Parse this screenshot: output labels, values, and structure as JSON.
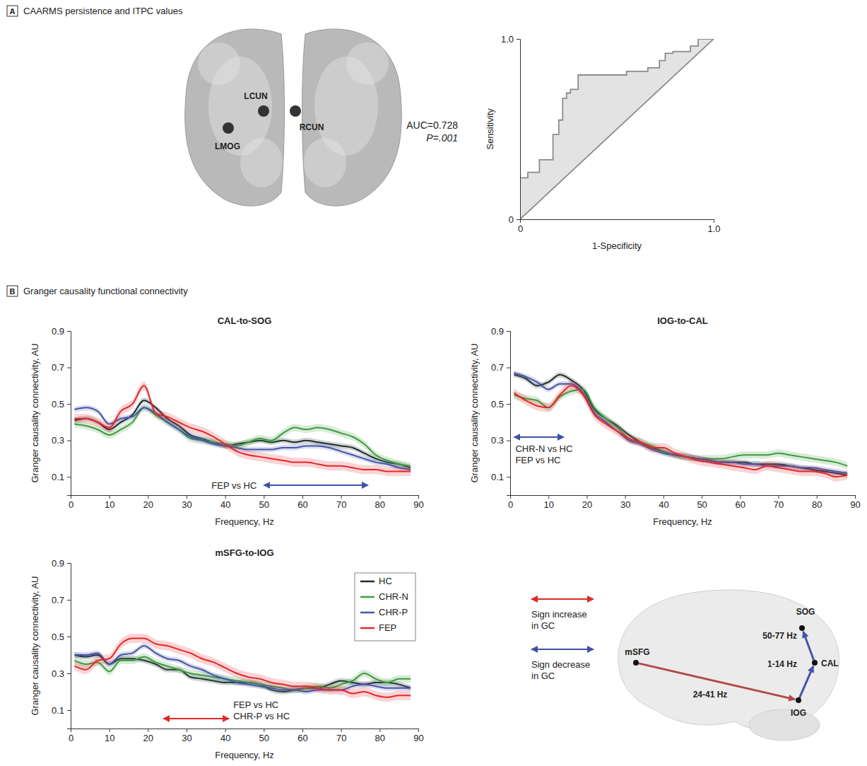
{
  "panels": [
    {
      "letter": "A",
      "title": "CAARMS persistence and ITPC values"
    },
    {
      "letter": "B",
      "title": "Granger causality functional connectivity"
    }
  ],
  "brain_regions": [
    "LCUN",
    "LMOG",
    "RCUN"
  ],
  "connectivity_diagram": {
    "nodes": [
      "mSFG",
      "SOG",
      "CAL",
      "IOG"
    ],
    "edges": [
      {
        "from": "CAL",
        "to": "SOG",
        "label": "50-77 Hz",
        "color": "#4654a8"
      },
      {
        "from": "IOG",
        "to": "CAL",
        "label": "1-14 Hz",
        "color": "#4654a8"
      },
      {
        "from": "mSFG",
        "to": "IOG",
        "label": "24-41 Hz",
        "color": "#b5474a"
      }
    ],
    "legend": [
      {
        "label": "Sign increase in GC",
        "color": "#e02828"
      },
      {
        "label": "Sign decrease in GC",
        "color": "#3f51a3"
      }
    ]
  },
  "chart_data": [
    {
      "type": "line",
      "x_label": "1-Specificity",
      "y_label": "Sensitivity",
      "xlim": [
        0,
        1
      ],
      "ylim": [
        0,
        1
      ],
      "xticks": [
        0,
        {
          "value": 1,
          "label": "1.0"
        }
      ],
      "yticks": [
        0,
        {
          "value": 1,
          "label": "1.0"
        }
      ],
      "annotations": [
        "AUC=0.728",
        "P=.001"
      ],
      "series": [
        {
          "color": "#8c8c8c",
          "x": [
            0,
            0,
            0.04,
            0.04,
            0.1,
            0.1,
            0.17,
            0.17,
            0.2,
            0.2,
            0.22,
            0.22,
            0.24,
            0.24,
            0.26,
            0.26,
            0.3,
            0.3,
            0.55,
            0.55,
            0.66,
            0.66,
            0.72,
            0.72,
            0.75,
            0.75,
            0.79,
            0.79,
            0.88,
            0.88,
            0.92,
            0.92,
            1
          ],
          "values": [
            0,
            0.23,
            0.23,
            0.26,
            0.26,
            0.33,
            0.33,
            0.47,
            0.47,
            0.55,
            0.55,
            0.67,
            0.67,
            0.7,
            0.7,
            0.72,
            0.72,
            0.8,
            0.8,
            0.82,
            0.82,
            0.84,
            0.84,
            0.88,
            0.88,
            0.92,
            0.92,
            0.93,
            0.93,
            0.96,
            0.96,
            1,
            1
          ]
        },
        {
          "color": "#8c8c8c",
          "x": [
            0,
            1
          ],
          "values": [
            0,
            1
          ]
        }
      ]
    },
    {
      "type": "line",
      "title": "CAL-to-SOG",
      "x_label": "Frequency, Hz",
      "y_label": "Granger causality connectivity, AU",
      "xlim": [
        0,
        90
      ],
      "ylim": [
        0,
        0.9
      ],
      "xticks": [
        0,
        10,
        20,
        30,
        40,
        50,
        60,
        70,
        80,
        90
      ],
      "yticks": [
        0.1,
        0.3,
        0.5,
        0.7,
        0.9
      ],
      "x": [
        1,
        4,
        7,
        10,
        13,
        16,
        19,
        22,
        25,
        28,
        31,
        34,
        37,
        40,
        43,
        46,
        49,
        52,
        55,
        58,
        61,
        64,
        67,
        70,
        73,
        76,
        79,
        82,
        85,
        88
      ],
      "annotations": [
        {
          "label": [
            "FEP vs HC"
          ],
          "range": [
            50,
            77
          ],
          "color": "#3f51a3"
        }
      ],
      "series": [
        {
          "color": "#1f2d2d",
          "error": 0.015,
          "values": [
            0.41,
            0.42,
            0.4,
            0.36,
            0.4,
            0.44,
            0.52,
            0.48,
            0.42,
            0.38,
            0.33,
            0.31,
            0.29,
            0.27,
            0.28,
            0.29,
            0.3,
            0.29,
            0.3,
            0.29,
            0.3,
            0.29,
            0.28,
            0.27,
            0.26,
            0.23,
            0.2,
            0.18,
            0.17,
            0.15
          ]
        },
        {
          "color": "#3d9b3d",
          "error": 0.02,
          "values": [
            0.39,
            0.38,
            0.36,
            0.33,
            0.36,
            0.4,
            0.48,
            0.44,
            0.4,
            0.36,
            0.31,
            0.3,
            0.29,
            0.28,
            0.27,
            0.29,
            0.31,
            0.3,
            0.34,
            0.37,
            0.36,
            0.37,
            0.36,
            0.34,
            0.32,
            0.28,
            0.22,
            0.19,
            0.17,
            0.16
          ]
        },
        {
          "color": "#4654a8",
          "error": 0.015,
          "values": [
            0.47,
            0.48,
            0.46,
            0.39,
            0.42,
            0.43,
            0.48,
            0.45,
            0.4,
            0.36,
            0.32,
            0.3,
            0.28,
            0.27,
            0.26,
            0.25,
            0.25,
            0.25,
            0.26,
            0.26,
            0.27,
            0.27,
            0.26,
            0.24,
            0.22,
            0.2,
            0.18,
            0.17,
            0.15,
            0.14
          ]
        },
        {
          "color": "#e8262b",
          "error": 0.025,
          "values": [
            0.42,
            0.42,
            0.4,
            0.37,
            0.46,
            0.5,
            0.6,
            0.45,
            0.43,
            0.4,
            0.37,
            0.35,
            0.32,
            0.28,
            0.24,
            0.22,
            0.21,
            0.2,
            0.19,
            0.18,
            0.18,
            0.17,
            0.16,
            0.16,
            0.15,
            0.14,
            0.14,
            0.13,
            0.13,
            0.13
          ]
        }
      ]
    },
    {
      "type": "line",
      "title": "IOG-to-CAL",
      "x_label": "Frequency, Hz",
      "y_label": "Granger causality connectivity, AU",
      "xlim": [
        0,
        90
      ],
      "ylim": [
        0,
        0.9
      ],
      "xticks": [
        0,
        10,
        20,
        30,
        40,
        50,
        60,
        70,
        80,
        90
      ],
      "yticks": [
        0.1,
        0.3,
        0.5,
        0.7,
        0.9
      ],
      "x": [
        1,
        4,
        7,
        10,
        13,
        16,
        19,
        22,
        25,
        28,
        31,
        34,
        37,
        40,
        43,
        46,
        49,
        52,
        55,
        58,
        61,
        64,
        67,
        70,
        73,
        76,
        79,
        82,
        85,
        88
      ],
      "annotations": [
        {
          "label": [
            "CHR-N vs HC",
            "FEP vs HC"
          ],
          "range": [
            1,
            14
          ],
          "color": "#3f51a3"
        }
      ],
      "series": [
        {
          "color": "#1f2d2d",
          "error": 0.015,
          "values": [
            0.66,
            0.64,
            0.6,
            0.62,
            0.66,
            0.63,
            0.58,
            0.47,
            0.42,
            0.38,
            0.33,
            0.29,
            0.26,
            0.24,
            0.22,
            0.21,
            0.2,
            0.19,
            0.18,
            0.18,
            0.18,
            0.17,
            0.17,
            0.17,
            0.16,
            0.15,
            0.14,
            0.13,
            0.12,
            0.11
          ]
        },
        {
          "color": "#3d9b3d",
          "error": 0.02,
          "values": [
            0.55,
            0.53,
            0.52,
            0.48,
            0.54,
            0.57,
            0.58,
            0.48,
            0.42,
            0.37,
            0.31,
            0.29,
            0.27,
            0.24,
            0.22,
            0.21,
            0.2,
            0.2,
            0.2,
            0.21,
            0.22,
            0.22,
            0.22,
            0.23,
            0.22,
            0.21,
            0.2,
            0.19,
            0.18,
            0.16
          ]
        },
        {
          "color": "#4654a8",
          "error": 0.015,
          "values": [
            0.67,
            0.65,
            0.62,
            0.58,
            0.61,
            0.61,
            0.56,
            0.45,
            0.4,
            0.35,
            0.3,
            0.28,
            0.25,
            0.23,
            0.22,
            0.21,
            0.2,
            0.19,
            0.18,
            0.18,
            0.17,
            0.17,
            0.16,
            0.16,
            0.16,
            0.15,
            0.15,
            0.14,
            0.13,
            0.12
          ]
        },
        {
          "color": "#e8262b",
          "error": 0.025,
          "values": [
            0.56,
            0.52,
            0.49,
            0.48,
            0.55,
            0.6,
            0.55,
            0.44,
            0.39,
            0.35,
            0.31,
            0.29,
            0.26,
            0.26,
            0.23,
            0.21,
            0.19,
            0.18,
            0.17,
            0.16,
            0.15,
            0.14,
            0.16,
            0.15,
            0.14,
            0.13,
            0.13,
            0.12,
            0.1,
            0.11
          ]
        }
      ]
    },
    {
      "type": "line",
      "title": "mSFG-to-IOG",
      "x_label": "Frequency, Hz",
      "y_label": "Granger causality connectivity, AU",
      "xlim": [
        0,
        90
      ],
      "ylim": [
        0,
        0.9
      ],
      "xticks": [
        0,
        10,
        20,
        30,
        40,
        50,
        60,
        70,
        80,
        90
      ],
      "yticks": [
        0.1,
        0.3,
        0.5,
        0.7,
        0.9
      ],
      "x": [
        1,
        4,
        7,
        10,
        13,
        16,
        19,
        22,
        25,
        28,
        31,
        34,
        37,
        40,
        43,
        46,
        49,
        52,
        55,
        58,
        61,
        64,
        67,
        70,
        73,
        76,
        79,
        82,
        85,
        88
      ],
      "legend": "upper right",
      "annotations": [
        {
          "label": [
            "FEP vs HC",
            "CHR-P vs HC"
          ],
          "range": [
            24,
            41
          ],
          "color": "#e02828"
        }
      ],
      "series": [
        {
          "name": "HC",
          "color": "#1f2d2d",
          "error": 0.015,
          "values": [
            0.4,
            0.39,
            0.4,
            0.35,
            0.38,
            0.38,
            0.37,
            0.35,
            0.32,
            0.32,
            0.28,
            0.27,
            0.26,
            0.25,
            0.25,
            0.25,
            0.24,
            0.21,
            0.2,
            0.21,
            0.22,
            0.22,
            0.24,
            0.26,
            0.25,
            0.24,
            0.25,
            0.25,
            0.24,
            0.22
          ]
        },
        {
          "name": "CHR-N",
          "color": "#3d9b3d",
          "error": 0.02,
          "values": [
            0.37,
            0.35,
            0.36,
            0.31,
            0.37,
            0.37,
            0.39,
            0.36,
            0.34,
            0.32,
            0.3,
            0.29,
            0.28,
            0.27,
            0.26,
            0.25,
            0.24,
            0.23,
            0.22,
            0.21,
            0.22,
            0.23,
            0.22,
            0.24,
            0.26,
            0.3,
            0.27,
            0.25,
            0.27,
            0.27
          ]
        },
        {
          "name": "CHR-P",
          "color": "#4654a8",
          "error": 0.015,
          "values": [
            0.4,
            0.4,
            0.41,
            0.35,
            0.4,
            0.41,
            0.45,
            0.41,
            0.38,
            0.37,
            0.34,
            0.32,
            0.29,
            0.27,
            0.25,
            0.24,
            0.23,
            0.22,
            0.21,
            0.21,
            0.2,
            0.21,
            0.21,
            0.21,
            0.23,
            0.24,
            0.23,
            0.22,
            0.22,
            0.22
          ]
        },
        {
          "name": "FEP",
          "color": "#e8262b",
          "error": 0.025,
          "values": [
            0.34,
            0.32,
            0.37,
            0.38,
            0.46,
            0.49,
            0.49,
            0.46,
            0.45,
            0.43,
            0.41,
            0.38,
            0.36,
            0.33,
            0.3,
            0.28,
            0.27,
            0.25,
            0.24,
            0.23,
            0.23,
            0.22,
            0.21,
            0.21,
            0.19,
            0.2,
            0.18,
            0.17,
            0.18,
            0.18
          ]
        }
      ]
    }
  ]
}
